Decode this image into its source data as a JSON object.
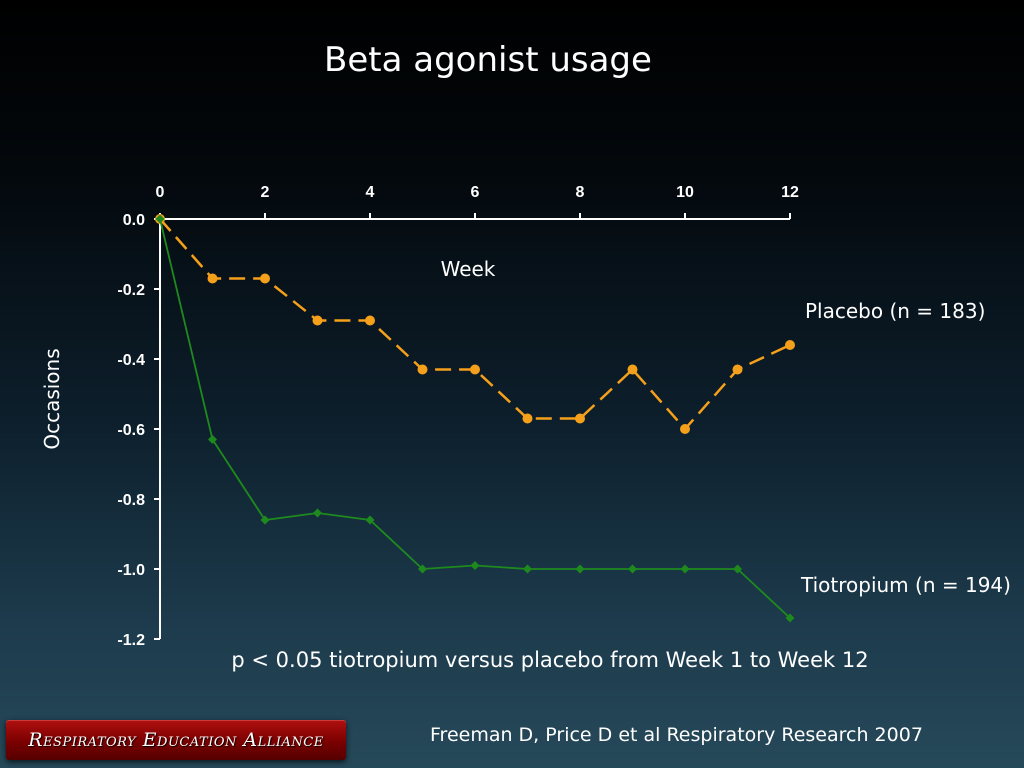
{
  "slide": {
    "title": "Beta agonist usage",
    "footnote": "p < 0.05 tiotropium versus placebo from Week 1 to Week 12",
    "citation": "Freeman D, Price D et al Respiratory Research 2007",
    "logo_text": "Respiratory Education Alliance"
  },
  "chart_data": {
    "type": "line",
    "title": "",
    "xlabel": "Week",
    "ylabel": "Occasions",
    "x_ticks": [
      0,
      2,
      4,
      6,
      8,
      10,
      12
    ],
    "y_ticks": [
      "0.0",
      "-0.2",
      "-0.4",
      "-0.6",
      "-0.8",
      "-1.0",
      "-1.2"
    ],
    "xlim": [
      0,
      12
    ],
    "ylim": [
      -1.2,
      0
    ],
    "x_axis_position": "top",
    "grid": false,
    "x": [
      0,
      1,
      2,
      3,
      4,
      5,
      6,
      7,
      8,
      9,
      10,
      11,
      12
    ],
    "series": [
      {
        "name": "Placebo (n = 183)",
        "color": "#f5a01a",
        "line_style": "dashed",
        "marker": "circle",
        "values": [
          0,
          -0.17,
          -0.17,
          -0.29,
          -0.29,
          -0.43,
          -0.43,
          -0.57,
          -0.57,
          -0.43,
          -0.6,
          -0.43,
          -0.36
        ]
      },
      {
        "name": "Tiotropium (n = 194)",
        "color": "#1e8a1e",
        "line_style": "solid",
        "marker": "diamond",
        "values": [
          0,
          -0.63,
          -0.86,
          -0.84,
          -0.86,
          -1.0,
          -0.99,
          -1.0,
          -1.0,
          -1.0,
          -1.0,
          -1.0,
          -1.14
        ]
      }
    ]
  }
}
